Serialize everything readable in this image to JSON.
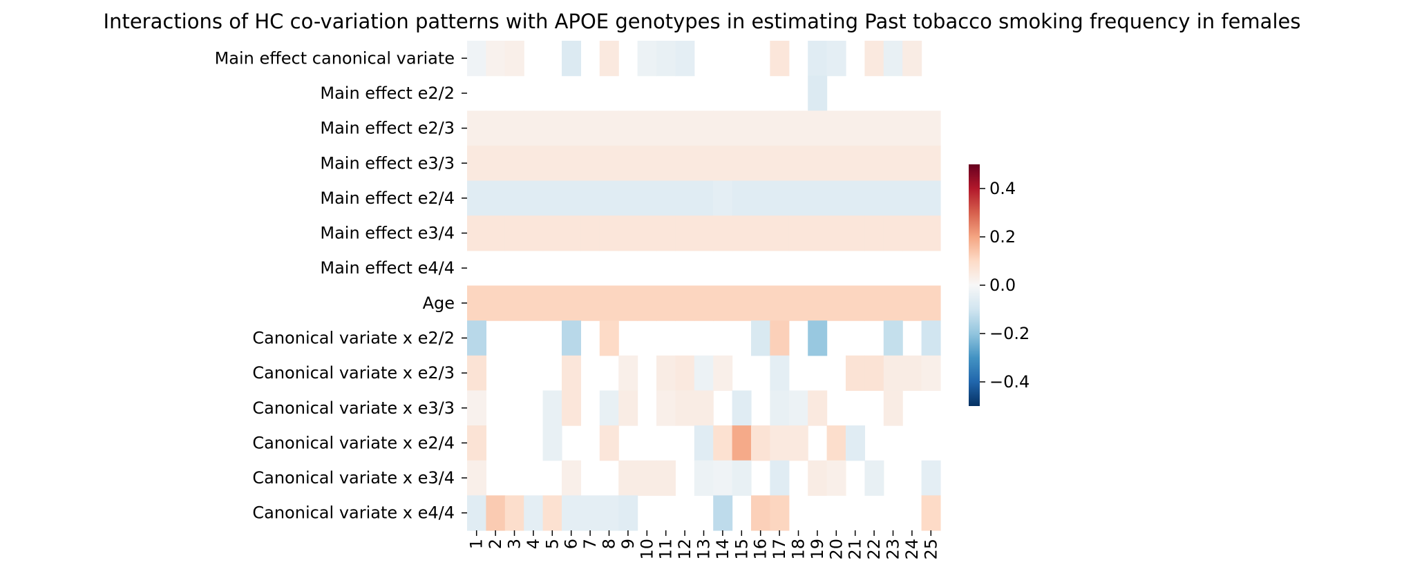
{
  "chart_data": {
    "type": "heatmap",
    "title": "Interactions of HC co-variation patterns with APOE genotypes in estimating Past tobacco smoking frequency in females",
    "columns": [
      "1",
      "2",
      "3",
      "4",
      "5",
      "6",
      "7",
      "8",
      "9",
      "10",
      "11",
      "12",
      "13",
      "14",
      "15",
      "16",
      "17",
      "18",
      "19",
      "20",
      "21",
      "22",
      "23",
      "24",
      "25"
    ],
    "rows": [
      "Main effect canonical variate",
      "Main effect e2/2",
      "Main effect e2/3",
      "Main effect e3/3",
      "Main effect e2/4",
      "Main effect e3/4",
      "Main effect e4/4",
      "Age",
      "Canonical variate x e2/2",
      "Canonical variate x e2/3",
      "Canonical variate x e3/3",
      "Canonical variate x e2/4",
      "Canonical variate x e3/4",
      "Canonical variate x e4/4"
    ],
    "values": [
      [
        -0.02,
        0.02,
        0.03,
        null,
        null,
        -0.07,
        null,
        0.05,
        null,
        -0.03,
        -0.04,
        -0.05,
        null,
        null,
        null,
        null,
        0.06,
        null,
        -0.06,
        -0.05,
        null,
        0.05,
        -0.04,
        0.04,
        null
      ],
      [
        null,
        null,
        null,
        null,
        null,
        null,
        null,
        null,
        null,
        null,
        null,
        null,
        null,
        null,
        null,
        null,
        null,
        null,
        -0.07,
        null,
        null,
        null,
        null,
        null,
        null
      ],
      [
        0.03,
        0.03,
        0.03,
        0.03,
        0.03,
        0.03,
        0.03,
        0.03,
        0.03,
        0.03,
        0.03,
        0.03,
        0.03,
        0.03,
        0.03,
        0.03,
        0.03,
        0.03,
        0.03,
        0.03,
        0.03,
        0.03,
        0.03,
        0.03,
        0.03
      ],
      [
        0.05,
        0.05,
        0.05,
        0.05,
        0.05,
        0.05,
        0.05,
        0.05,
        0.05,
        0.05,
        0.05,
        0.05,
        0.05,
        0.05,
        0.05,
        0.05,
        0.05,
        0.05,
        0.05,
        0.05,
        0.05,
        0.05,
        0.05,
        0.05,
        0.05
      ],
      [
        -0.06,
        -0.06,
        -0.06,
        -0.06,
        -0.06,
        -0.06,
        -0.06,
        -0.06,
        -0.06,
        -0.06,
        -0.06,
        -0.06,
        -0.06,
        -0.05,
        -0.06,
        -0.06,
        -0.06,
        -0.06,
        -0.06,
        -0.06,
        -0.06,
        -0.06,
        -0.06,
        -0.06,
        -0.06
      ],
      [
        0.06,
        0.06,
        0.06,
        0.06,
        0.06,
        0.06,
        0.06,
        0.06,
        0.06,
        0.06,
        0.06,
        0.06,
        0.06,
        0.06,
        0.06,
        0.06,
        0.06,
        0.06,
        0.06,
        0.06,
        0.06,
        0.06,
        0.06,
        0.06,
        0.06
      ],
      [
        null,
        null,
        null,
        null,
        null,
        null,
        null,
        null,
        null,
        null,
        null,
        null,
        null,
        null,
        null,
        null,
        null,
        null,
        null,
        null,
        null,
        null,
        null,
        null,
        null
      ],
      [
        0.11,
        0.11,
        0.11,
        0.11,
        0.11,
        0.11,
        0.11,
        0.11,
        0.11,
        0.11,
        0.11,
        0.11,
        0.11,
        0.11,
        0.11,
        0.11,
        0.11,
        0.11,
        0.11,
        0.11,
        0.11,
        0.11,
        0.11,
        0.11,
        0.11
      ],
      [
        -0.14,
        null,
        null,
        null,
        null,
        -0.14,
        null,
        0.1,
        null,
        null,
        null,
        null,
        null,
        null,
        null,
        -0.08,
        0.12,
        null,
        -0.19,
        null,
        null,
        null,
        -0.12,
        null,
        -0.1
      ],
      [
        0.07,
        null,
        null,
        null,
        null,
        0.06,
        null,
        null,
        0.03,
        null,
        0.04,
        0.05,
        -0.03,
        0.03,
        null,
        null,
        -0.05,
        null,
        null,
        null,
        0.07,
        0.07,
        0.04,
        0.04,
        0.03
      ],
      [
        0.02,
        null,
        null,
        null,
        -0.04,
        0.06,
        null,
        -0.04,
        0.04,
        null,
        0.03,
        0.04,
        0.04,
        null,
        -0.06,
        null,
        -0.04,
        -0.03,
        0.05,
        null,
        null,
        null,
        0.04,
        null,
        null
      ],
      [
        0.07,
        null,
        null,
        null,
        -0.04,
        null,
        null,
        0.06,
        null,
        null,
        null,
        null,
        -0.06,
        0.08,
        0.19,
        0.07,
        0.05,
        0.05,
        null,
        0.09,
        -0.06,
        null,
        null,
        null,
        null
      ],
      [
        0.03,
        null,
        null,
        null,
        null,
        0.03,
        null,
        null,
        0.04,
        0.04,
        0.04,
        null,
        -0.03,
        -0.02,
        -0.04,
        null,
        -0.06,
        null,
        0.04,
        0.03,
        null,
        -0.04,
        null,
        null,
        -0.05
      ],
      [
        -0.06,
        0.13,
        0.09,
        -0.05,
        0.08,
        -0.05,
        -0.05,
        -0.05,
        -0.06,
        null,
        null,
        null,
        null,
        -0.13,
        null,
        0.12,
        0.11,
        null,
        null,
        null,
        null,
        null,
        null,
        null,
        0.1
      ]
    ],
    "colorbar": {
      "vmin": -0.5,
      "vmax": 0.5,
      "ticks": [
        0.4,
        0.2,
        0.0,
        -0.2,
        -0.4
      ],
      "tick_labels": [
        "0.4",
        "0.2",
        "0.0",
        "−0.2",
        "−0.4"
      ],
      "colormap": "RdBu_r"
    },
    "xlabel": "",
    "ylabel": ""
  }
}
